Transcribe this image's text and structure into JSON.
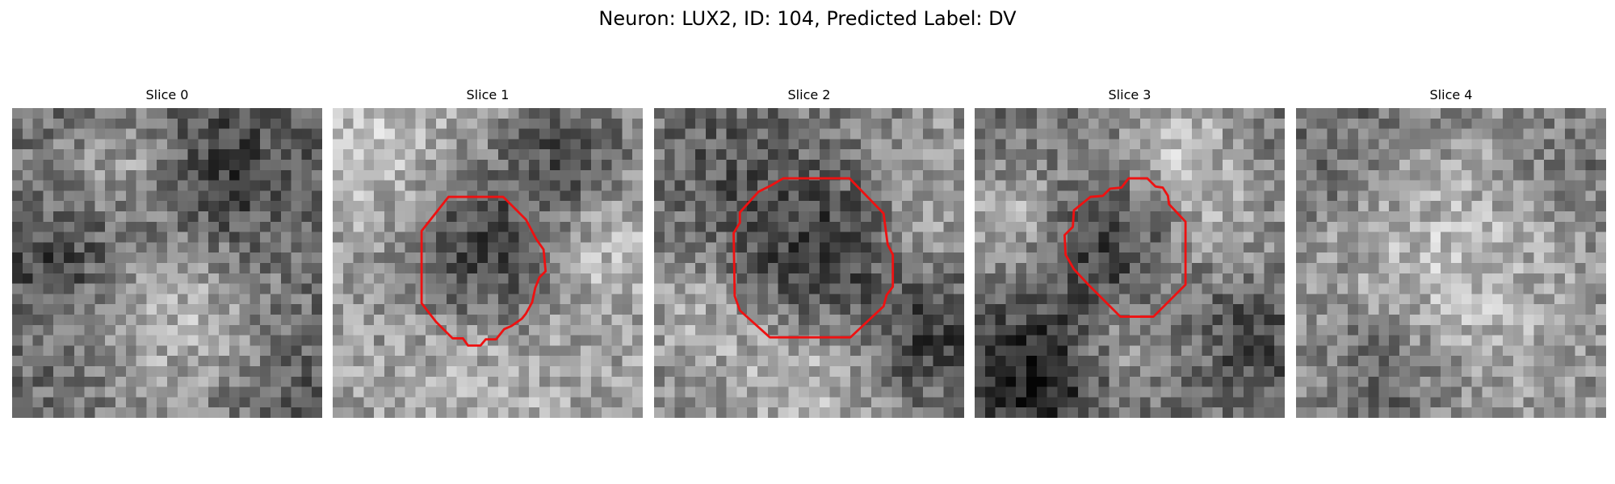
{
  "figure": {
    "title": "Neuron: LUX2, ID: 104, Predicted Label: DV"
  },
  "colors": {
    "contour": "#ee1111",
    "colormap": "gray"
  },
  "panels": [
    {
      "title": "Slice 0",
      "has_contour": false
    },
    {
      "title": "Slice 1",
      "has_contour": true
    },
    {
      "title": "Slice 2",
      "has_contour": true
    },
    {
      "title": "Slice 3",
      "has_contour": true
    },
    {
      "title": "Slice 4",
      "has_contour": false
    }
  ]
}
